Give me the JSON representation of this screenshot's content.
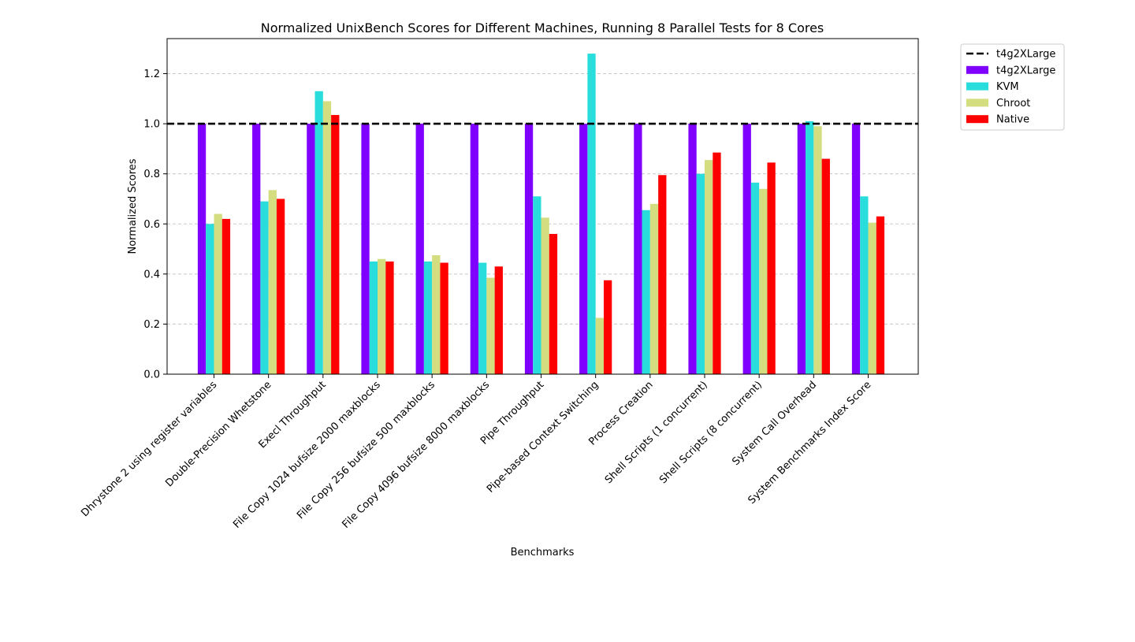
{
  "chart_data": {
    "type": "bar",
    "title": "Normalized UnixBench Scores for Different Machines, Running 8 Parallel Tests for 8 Cores",
    "xlabel": "Benchmarks",
    "ylabel": "Normalized Scores",
    "ylim": [
      0,
      1.34
    ],
    "yticks": [
      "0.0",
      "0.2",
      "0.4",
      "0.6",
      "0.8",
      "1.0",
      "1.2"
    ],
    "grid": "y-dashed",
    "legend_position": "outside-top-right",
    "baseline": {
      "name": "t4g2XLarge",
      "value": 1.0,
      "color": "#000000",
      "style": "dashed"
    },
    "categories": [
      "Dhrystone 2 using register variables",
      "Double-Precision Whetstone",
      "Execl Throughput",
      "File Copy 1024 bufsize 2000 maxblocks",
      "File Copy 256 bufsize 500 maxblocks",
      "File Copy 4096 bufsize 8000 maxblocks",
      "Pipe Throughput",
      "Pipe-based Context Switching",
      "Process Creation",
      "Shell Scripts (1 concurrent)",
      "Shell Scripts (8 concurrent)",
      "System Call Overhead",
      "System Benchmarks Index Score"
    ],
    "series": [
      {
        "name": "t4g2XLarge",
        "color": "#8000ff",
        "values": [
          1.0,
          1.0,
          1.0,
          1.0,
          1.0,
          1.0,
          1.0,
          1.0,
          1.0,
          1.0,
          1.0,
          1.0,
          1.0
        ]
      },
      {
        "name": "KVM",
        "color": "#2adddd",
        "values": [
          0.6,
          0.69,
          1.13,
          0.45,
          0.45,
          0.445,
          0.71,
          1.28,
          0.655,
          0.8,
          0.765,
          1.01,
          0.71
        ]
      },
      {
        "name": "Chroot",
        "color": "#d4dd80",
        "values": [
          0.64,
          0.735,
          1.09,
          0.46,
          0.475,
          0.385,
          0.625,
          0.225,
          0.68,
          0.855,
          0.74,
          0.99,
          0.605
        ]
      },
      {
        "name": "Native",
        "color": "#ff0000",
        "values": [
          0.62,
          0.7,
          1.035,
          0.45,
          0.445,
          0.43,
          0.56,
          0.375,
          0.795,
          0.885,
          0.845,
          0.86,
          0.63
        ]
      }
    ]
  }
}
